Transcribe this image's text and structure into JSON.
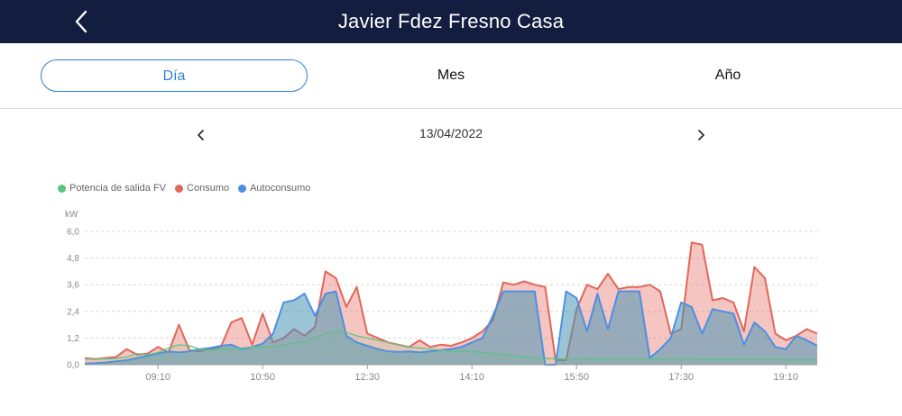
{
  "header": {
    "title": "Javier Fdez Fresno Casa",
    "back_icon": "chevron-left-icon"
  },
  "tabs": [
    {
      "label": "Día",
      "active": true
    },
    {
      "label": "Mes",
      "active": false
    },
    {
      "label": "Año",
      "active": false
    }
  ],
  "date_nav": {
    "date": "13/04/2022",
    "prev_icon": "chevron-left-icon",
    "next_icon": "chevron-right-icon"
  },
  "colors": {
    "header_bg": "#121d3f",
    "accent": "#2f7fd2",
    "pv": "#59c47e",
    "consumo": "#e0675a",
    "autoconsumo": "#4d8fe4"
  },
  "chart_data": {
    "type": "area",
    "unit": "kW",
    "legend_position": "top-left",
    "grid": true,
    "y_ticks": [
      "0,0",
      "1,2",
      "2,4",
      "3,6",
      "4,8",
      "6,0"
    ],
    "ylim": [
      0,
      6.0
    ],
    "x_ticks": [
      "09:10",
      "10:50",
      "12:30",
      "14:10",
      "15:50",
      "17:30",
      "19:10"
    ],
    "xlim": [
      "08:00",
      "19:40"
    ],
    "x": [
      "08:00",
      "08:10",
      "08:20",
      "08:30",
      "08:40",
      "08:50",
      "09:00",
      "09:10",
      "09:20",
      "09:30",
      "09:40",
      "09:50",
      "10:00",
      "10:10",
      "10:20",
      "10:30",
      "10:40",
      "10:50",
      "11:00",
      "11:10",
      "11:20",
      "11:30",
      "11:40",
      "11:50",
      "12:00",
      "12:10",
      "12:20",
      "12:30",
      "12:40",
      "12:50",
      "13:00",
      "13:10",
      "13:20",
      "13:30",
      "13:40",
      "13:50",
      "14:00",
      "14:10",
      "14:20",
      "14:30",
      "14:40",
      "14:50",
      "15:00",
      "15:10",
      "15:20",
      "15:30",
      "15:40",
      "15:50",
      "16:00",
      "16:10",
      "16:20",
      "16:30",
      "16:40",
      "16:50",
      "17:00",
      "17:10",
      "17:20",
      "17:30",
      "17:40",
      "17:50",
      "18:00",
      "18:10",
      "18:20",
      "18:30",
      "18:40",
      "18:50",
      "19:00",
      "19:10",
      "19:20",
      "19:30",
      "19:40"
    ],
    "series": [
      {
        "name": "Potencia de salida FV",
        "values": [
          0.25,
          0.27,
          0.26,
          0.28,
          0.35,
          0.5,
          0.45,
          0.55,
          0.75,
          0.9,
          0.85,
          0.7,
          0.65,
          0.68,
          0.72,
          0.75,
          0.8,
          0.78,
          0.82,
          0.9,
          0.95,
          1.05,
          1.2,
          1.4,
          1.5,
          1.45,
          1.3,
          1.2,
          1.1,
          1.0,
          0.9,
          0.8,
          0.75,
          0.7,
          0.65,
          0.6,
          0.6,
          0.58,
          0.55,
          0.5,
          0.45,
          0.4,
          0.35,
          0.3,
          0.28,
          0.28,
          0.27,
          0.27,
          0.26,
          0.26,
          0.25,
          0.25,
          0.25,
          0.25,
          0.25,
          0.25,
          0.25,
          0.25,
          0.25,
          0.24,
          0.24,
          0.24,
          0.24,
          0.23,
          0.23,
          0.23,
          0.23,
          0.22,
          0.22,
          0.22,
          0.21
        ]
      },
      {
        "name": "Consumo",
        "values": [
          0.3,
          0.25,
          0.3,
          0.35,
          0.7,
          0.45,
          0.5,
          0.8,
          0.55,
          1.8,
          0.65,
          0.6,
          0.7,
          0.8,
          1.9,
          2.1,
          0.9,
          2.3,
          1.0,
          1.2,
          1.6,
          1.3,
          1.7,
          4.2,
          3.9,
          2.6,
          3.5,
          1.4,
          1.2,
          1.0,
          0.9,
          0.8,
          1.1,
          0.8,
          0.9,
          0.85,
          1.0,
          1.2,
          1.5,
          2.0,
          3.7,
          3.6,
          3.75,
          3.6,
          3.5,
          0.2,
          0.2,
          2.5,
          3.6,
          3.4,
          4.1,
          3.4,
          3.5,
          3.5,
          3.6,
          3.3,
          1.4,
          1.6,
          5.5,
          5.4,
          2.9,
          3.0,
          2.8,
          1.5,
          4.4,
          3.9,
          1.4,
          1.1,
          1.3,
          1.6,
          1.4
        ]
      },
      {
        "name": "Autoconsumo",
        "values": [
          0.05,
          0.07,
          0.1,
          0.15,
          0.2,
          0.3,
          0.4,
          0.5,
          0.6,
          0.55,
          0.6,
          0.7,
          0.75,
          0.85,
          0.9,
          0.7,
          0.8,
          0.95,
          1.4,
          2.8,
          2.9,
          3.2,
          2.2,
          3.2,
          3.3,
          1.3,
          1.0,
          0.85,
          0.7,
          0.6,
          0.58,
          0.6,
          0.55,
          0.6,
          0.65,
          0.7,
          0.8,
          1.0,
          1.2,
          2.2,
          3.3,
          3.3,
          3.3,
          3.3,
          0.0,
          0.0,
          3.3,
          3.0,
          1.5,
          3.2,
          1.6,
          3.3,
          3.3,
          3.3,
          0.3,
          0.7,
          1.2,
          2.8,
          2.6,
          1.4,
          2.5,
          2.4,
          2.3,
          0.9,
          1.9,
          1.5,
          0.8,
          0.7,
          1.3,
          1.1,
          0.85
        ]
      }
    ]
  }
}
